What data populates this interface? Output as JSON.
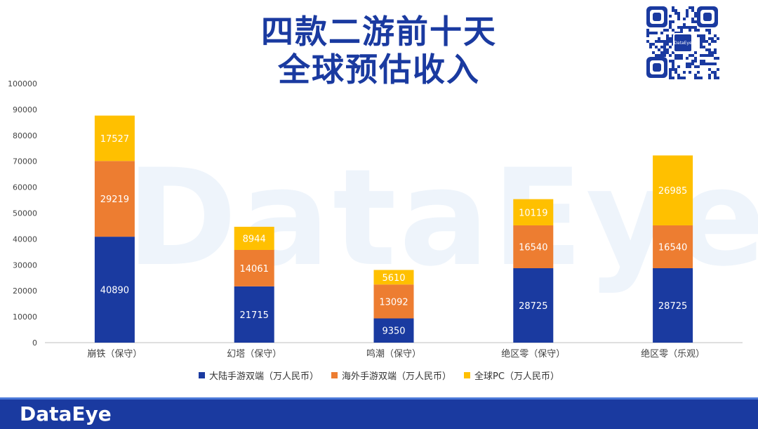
{
  "title_lines": [
    "四款二游前十天",
    "全球预估收入"
  ],
  "footer_logo": "DataEye",
  "qr_label": "DataEye",
  "watermark": "DataEye",
  "colors": {
    "title": "#1a3aa0",
    "series": [
      "#1a3aa0",
      "#ed7d31",
      "#ffc000"
    ],
    "footer": "#1a3aa0"
  },
  "chart_data": {
    "type": "bar",
    "stacked": true,
    "categories": [
      "崩铁（保守）",
      "幻塔（保守）",
      "鸣潮（保守）",
      "绝区零（保守）",
      "绝区零（乐观）"
    ],
    "series": [
      {
        "name": "大陆手游双端（万人民币）",
        "values": [
          40890,
          21715,
          9350,
          28725,
          28725
        ]
      },
      {
        "name": "海外手游双端（万人民币）",
        "values": [
          29219,
          14061,
          13092,
          16540,
          16540
        ]
      },
      {
        "name": "全球PC（万人民币）",
        "values": [
          17527,
          8944,
          5610,
          10119,
          26985
        ]
      }
    ],
    "ylim": [
      0,
      100000
    ],
    "yticks": [
      0,
      10000,
      20000,
      30000,
      40000,
      50000,
      60000,
      70000,
      80000,
      90000,
      100000
    ],
    "legend_position": "bottom",
    "grid": false
  }
}
